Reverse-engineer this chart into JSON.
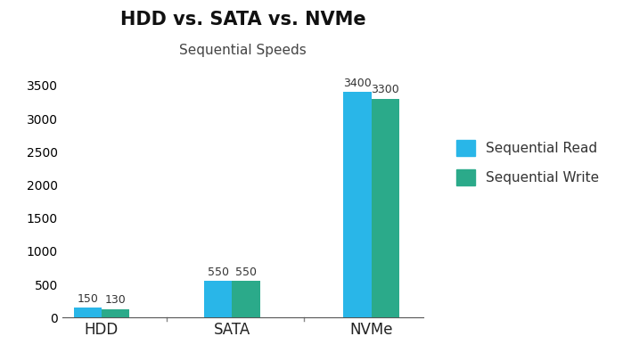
{
  "title": "HDD vs. SATA vs. NVMe",
  "subtitle": "Sequential Speeds",
  "categories": [
    "HDD",
    "SATA",
    "NVMe"
  ],
  "read_values": [
    150,
    550,
    3400
  ],
  "write_values": [
    130,
    550,
    3300
  ],
  "read_color": "#29B6E8",
  "write_color": "#2BAA8A",
  "ylim": [
    0,
    3700
  ],
  "yticks": [
    0,
    500,
    1000,
    1500,
    2000,
    2500,
    3000,
    3500
  ],
  "bar_width": 0.32,
  "title_fontsize": 15,
  "subtitle_fontsize": 11,
  "legend_fontsize": 11,
  "tick_fontsize": 10,
  "background_color": "#ffffff",
  "divider_color": "#888888",
  "annotation_fontsize": 9
}
